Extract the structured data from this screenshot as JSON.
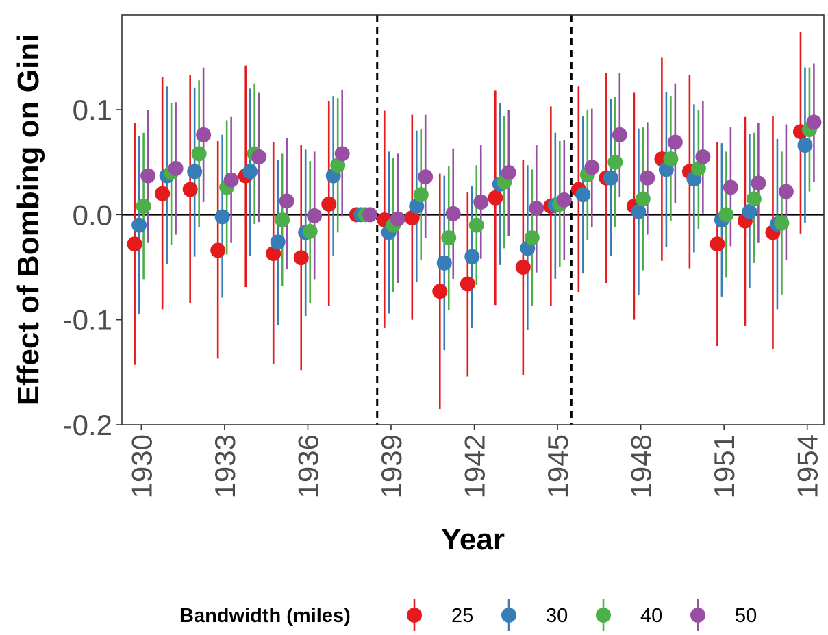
{
  "chart_data": {
    "type": "scatter",
    "subtype": "point-range (coefficient plot with 95% confidence intervals)",
    "xlabel": "Year",
    "ylabel": "Effect of Bombing on Gini",
    "xlim": [
      1929.3,
      1954.6
    ],
    "ylim": [
      -0.2,
      0.19
    ],
    "x_ticks": [
      1930,
      1933,
      1936,
      1939,
      1942,
      1945,
      1948,
      1951,
      1954
    ],
    "y_ticks": [
      -0.2,
      -0.1,
      0.0,
      0.1
    ],
    "y_tick_labels": [
      "-0.2",
      "-0.1",
      "0.0",
      "0.1"
    ],
    "horizontal_reference_line": 0,
    "vertical_reference_lines": [
      1938.5,
      1945.5
    ],
    "grid": false,
    "legend": {
      "title": "Bandwidth (miles)",
      "position": "bottom"
    },
    "series": [
      {
        "name": "25",
        "color": "#E41A1C",
        "x_offset": -0.24,
        "years": [
          1930,
          1931,
          1932,
          1933,
          1934,
          1935,
          1936,
          1937,
          1938,
          1939,
          1940,
          1941,
          1942,
          1943,
          1944,
          1945,
          1946,
          1947,
          1948,
          1949,
          1950,
          1951,
          1952,
          1953,
          1954
        ],
        "estimate": [
          -0.028,
          0.02,
          0.024,
          -0.034,
          0.037,
          -0.037,
          -0.041,
          0.01,
          0.0,
          -0.005,
          -0.003,
          -0.073,
          -0.066,
          0.016,
          -0.05,
          0.008,
          0.024,
          0.035,
          0.008,
          0.053,
          0.041,
          -0.028,
          -0.006,
          -0.017,
          0.079
        ],
        "ci_low": [
          -0.143,
          -0.09,
          -0.084,
          -0.137,
          -0.069,
          -0.142,
          -0.148,
          -0.087,
          0.0,
          -0.108,
          -0.1,
          -0.185,
          -0.154,
          -0.086,
          -0.153,
          -0.087,
          -0.074,
          -0.065,
          -0.1,
          -0.044,
          -0.051,
          -0.125,
          -0.106,
          -0.128,
          -0.018
        ],
        "ci_high": [
          0.087,
          0.131,
          0.133,
          0.07,
          0.142,
          0.069,
          0.066,
          0.108,
          0.0,
          0.099,
          0.095,
          0.039,
          0.021,
          0.118,
          0.052,
          0.103,
          0.122,
          0.135,
          0.116,
          0.15,
          0.133,
          0.069,
          0.093,
          0.094,
          0.174
        ]
      },
      {
        "name": "30",
        "color": "#377EB8",
        "x_offset": -0.08,
        "years": [
          1930,
          1931,
          1932,
          1933,
          1934,
          1935,
          1936,
          1937,
          1938,
          1939,
          1940,
          1941,
          1942,
          1943,
          1944,
          1945,
          1946,
          1947,
          1948,
          1949,
          1950,
          1951,
          1952,
          1953,
          1954
        ],
        "estimate": [
          -0.01,
          0.037,
          0.041,
          -0.002,
          0.041,
          -0.026,
          -0.017,
          0.037,
          0.0,
          -0.017,
          0.008,
          -0.046,
          -0.04,
          0.029,
          -0.032,
          0.009,
          0.019,
          0.035,
          0.003,
          0.043,
          0.034,
          -0.005,
          0.003,
          -0.009,
          0.066
        ],
        "ci_low": [
          -0.095,
          -0.047,
          -0.04,
          -0.079,
          -0.039,
          -0.105,
          -0.097,
          -0.039,
          0.0,
          -0.094,
          -0.064,
          -0.129,
          -0.108,
          -0.048,
          -0.11,
          -0.061,
          -0.056,
          -0.039,
          -0.076,
          -0.031,
          -0.036,
          -0.078,
          -0.07,
          -0.09,
          -0.008
        ],
        "ci_high": [
          0.075,
          0.122,
          0.121,
          0.076,
          0.12,
          0.052,
          0.062,
          0.113,
          0.0,
          0.06,
          0.08,
          0.037,
          0.027,
          0.106,
          0.047,
          0.078,
          0.094,
          0.11,
          0.082,
          0.117,
          0.105,
          0.068,
          0.077,
          0.072,
          0.14
        ]
      },
      {
        "name": "40",
        "color": "#4DAF4A",
        "x_offset": 0.08,
        "years": [
          1930,
          1931,
          1932,
          1933,
          1934,
          1935,
          1936,
          1937,
          1938,
          1939,
          1940,
          1941,
          1942,
          1943,
          1944,
          1945,
          1946,
          1947,
          1948,
          1949,
          1950,
          1951,
          1952,
          1953,
          1954
        ],
        "estimate": [
          0.008,
          0.04,
          0.058,
          0.026,
          0.058,
          -0.005,
          -0.016,
          0.047,
          0.0,
          -0.01,
          0.019,
          -0.022,
          -0.01,
          0.031,
          -0.022,
          0.01,
          0.038,
          0.05,
          0.015,
          0.053,
          0.044,
          0.0,
          0.015,
          -0.008,
          0.081
        ],
        "ci_low": [
          -0.062,
          -0.029,
          -0.012,
          -0.038,
          -0.009,
          -0.068,
          -0.084,
          -0.017,
          0.0,
          -0.074,
          -0.043,
          -0.091,
          -0.067,
          -0.032,
          -0.087,
          -0.05,
          -0.024,
          -0.012,
          -0.053,
          -0.006,
          -0.014,
          -0.06,
          -0.046,
          -0.076,
          0.022
        ],
        "ci_high": [
          0.078,
          0.106,
          0.128,
          0.09,
          0.125,
          0.058,
          0.051,
          0.111,
          0.0,
          0.054,
          0.081,
          0.046,
          0.047,
          0.094,
          0.043,
          0.07,
          0.1,
          0.112,
          0.083,
          0.113,
          0.1,
          0.06,
          0.078,
          0.06,
          0.14
        ]
      },
      {
        "name": "50",
        "color": "#984EA3",
        "x_offset": 0.24,
        "years": [
          1930,
          1931,
          1932,
          1933,
          1934,
          1935,
          1936,
          1937,
          1938,
          1939,
          1940,
          1941,
          1942,
          1943,
          1944,
          1945,
          1946,
          1947,
          1948,
          1949,
          1950,
          1951,
          1952,
          1953,
          1954
        ],
        "estimate": [
          0.037,
          0.044,
          0.076,
          0.033,
          0.055,
          0.013,
          -0.001,
          0.058,
          0.0,
          -0.004,
          0.036,
          0.001,
          0.012,
          0.04,
          0.006,
          0.014,
          0.045,
          0.076,
          0.035,
          0.069,
          0.055,
          0.026,
          0.03,
          0.022,
          0.088
        ],
        "ci_low": [
          -0.027,
          -0.019,
          0.012,
          -0.027,
          -0.007,
          -0.052,
          -0.062,
          -0.002,
          0.0,
          -0.065,
          -0.022,
          -0.061,
          -0.042,
          -0.02,
          -0.055,
          -0.043,
          -0.012,
          0.017,
          -0.019,
          0.011,
          0.001,
          -0.03,
          -0.027,
          -0.043,
          0.031
        ],
        "ci_high": [
          0.1,
          0.107,
          0.14,
          0.093,
          0.116,
          0.073,
          0.06,
          0.119,
          0.0,
          0.058,
          0.095,
          0.063,
          0.066,
          0.1,
          0.066,
          0.071,
          0.101,
          0.135,
          0.088,
          0.125,
          0.108,
          0.083,
          0.087,
          0.086,
          0.144
        ]
      }
    ]
  }
}
